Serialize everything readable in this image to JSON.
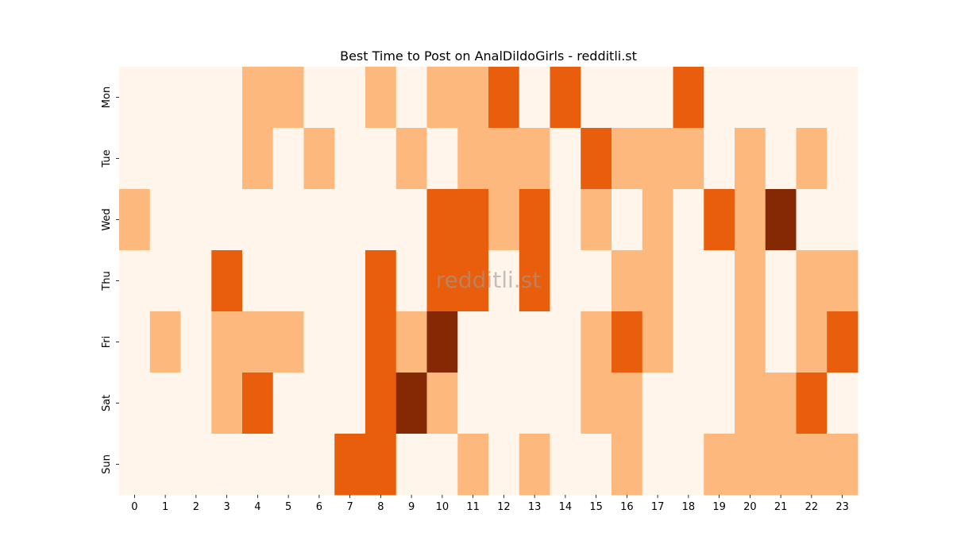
{
  "chart_data": {
    "type": "heatmap",
    "title": "Best Time to Post on AnalDildoGirls - redditli.st",
    "watermark": "redditli.st",
    "xlabel": "",
    "ylabel": "",
    "x_categories": [
      "0",
      "1",
      "2",
      "3",
      "4",
      "5",
      "6",
      "7",
      "8",
      "9",
      "10",
      "11",
      "12",
      "13",
      "14",
      "15",
      "16",
      "17",
      "18",
      "19",
      "20",
      "21",
      "22",
      "23"
    ],
    "y_categories": [
      "Mon",
      "Tue",
      "Wed",
      "Thu",
      "Fri",
      "Sat",
      "Sun"
    ],
    "colormap": "Oranges",
    "level_colors": [
      "#fff5eb",
      "#fdb97d",
      "#e95e0d",
      "#842904"
    ],
    "values": [
      [
        0,
        0,
        0,
        0,
        1,
        1,
        0,
        0,
        1,
        0,
        1,
        1,
        2,
        0,
        2,
        0,
        0,
        0,
        2,
        0,
        0,
        0,
        0,
        0
      ],
      [
        0,
        0,
        0,
        0,
        1,
        0,
        1,
        0,
        0,
        1,
        0,
        1,
        1,
        1,
        0,
        2,
        1,
        1,
        1,
        0,
        1,
        0,
        1,
        0
      ],
      [
        1,
        0,
        0,
        0,
        0,
        0,
        0,
        0,
        0,
        0,
        2,
        2,
        1,
        2,
        0,
        1,
        0,
        1,
        0,
        2,
        1,
        3,
        0,
        0
      ],
      [
        0,
        0,
        0,
        2,
        0,
        0,
        0,
        0,
        2,
        0,
        2,
        2,
        0,
        2,
        0,
        0,
        1,
        1,
        0,
        0,
        1,
        0,
        1,
        1
      ],
      [
        0,
        1,
        0,
        1,
        1,
        1,
        0,
        0,
        2,
        1,
        3,
        0,
        0,
        0,
        0,
        1,
        2,
        1,
        0,
        0,
        1,
        0,
        1,
        2
      ],
      [
        0,
        0,
        0,
        1,
        2,
        0,
        0,
        0,
        2,
        3,
        1,
        0,
        0,
        0,
        0,
        1,
        1,
        0,
        0,
        0,
        1,
        1,
        2,
        0
      ],
      [
        0,
        0,
        0,
        0,
        0,
        0,
        0,
        2,
        2,
        0,
        0,
        1,
        0,
        1,
        0,
        0,
        1,
        0,
        0,
        1,
        1,
        1,
        1,
        1
      ]
    ],
    "colorbar": false,
    "grid": false
  }
}
